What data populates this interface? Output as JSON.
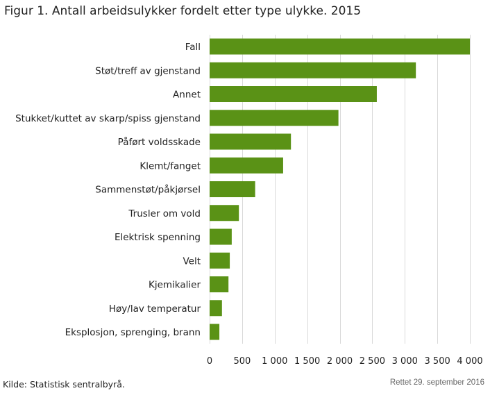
{
  "chart_data": {
    "type": "bar",
    "orientation": "horizontal",
    "title": "Figur 1. Antall arbeidsulykker fordelt etter type ulykke. 2015",
    "categories": [
      "Fall",
      "Støt/treff av gjenstand",
      "Annet",
      "Stukket/kuttet av skarp/spiss gjenstand",
      "Påført voldsskade",
      "Klemt/fanget",
      "Sammenstøt/påkjørsel",
      "Trusler om vold",
      "Elektrisk spenning",
      "Velt",
      "Kjemikalier",
      "Høy/lav temperatur",
      "Eksplosjon, sprenging, brann"
    ],
    "values": [
      4000,
      3170,
      2570,
      1980,
      1250,
      1130,
      700,
      450,
      340,
      310,
      290,
      190,
      150
    ],
    "xlim": [
      0,
      4000
    ],
    "xticks": [
      0,
      500,
      1000,
      1500,
      2000,
      2500,
      3000,
      3500,
      4000
    ],
    "xtick_labels": [
      "0",
      "500",
      "1 000",
      "1 500",
      "2 000",
      "2 500",
      "3 000",
      "3 500",
      "4 000"
    ],
    "grid": true,
    "bar_color": "#5a9216",
    "xlabel": "",
    "ylabel": ""
  },
  "footer": {
    "source": "Kilde: Statistisk sentralbyrå.",
    "correction": "Rettet 29. september 2016"
  }
}
